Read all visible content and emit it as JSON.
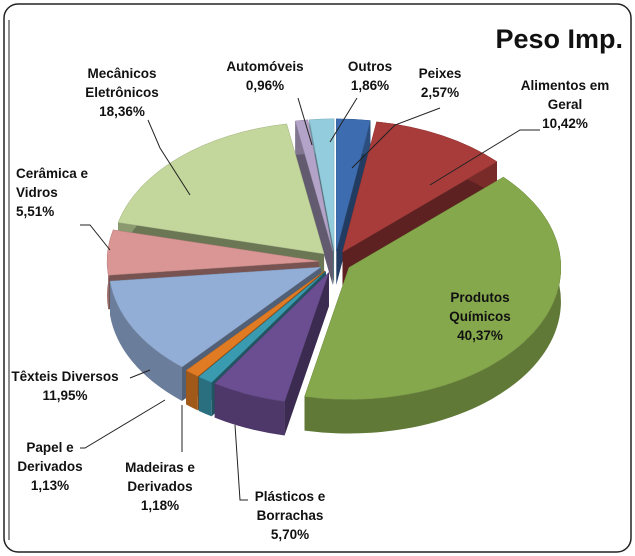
{
  "chart_data": {
    "type": "pie",
    "title": "Peso Imp.",
    "categories": [
      "Peixes",
      "Alimentos em Geral",
      "Produtos Químicos",
      "Plásticos e Borrachas",
      "Madeiras e Derivados",
      "Papel e Derivados",
      "Têxteis Diversos",
      "Cerâmica e Vidros",
      "Mecânicos Eletrônicos",
      "Automóveis",
      "Outros"
    ],
    "values": [
      2.57,
      10.42,
      40.37,
      5.7,
      1.18,
      1.13,
      11.95,
      5.51,
      18.36,
      0.96,
      1.86
    ],
    "value_labels": [
      "2,57%",
      "10,42%",
      "40,37%",
      "5,70%",
      "1,18%",
      "1,13%",
      "11,95%",
      "5,51%",
      "18,36%",
      "0,96%",
      "1,86%"
    ],
    "colors": [
      "#3d6db0",
      "#a83c3a",
      "#86a84c",
      "#6b4e92",
      "#3a9ab0",
      "#e07b24",
      "#93aed6",
      "#d99694",
      "#c3d69b",
      "#b3a3c8",
      "#93cddd"
    ]
  }
}
